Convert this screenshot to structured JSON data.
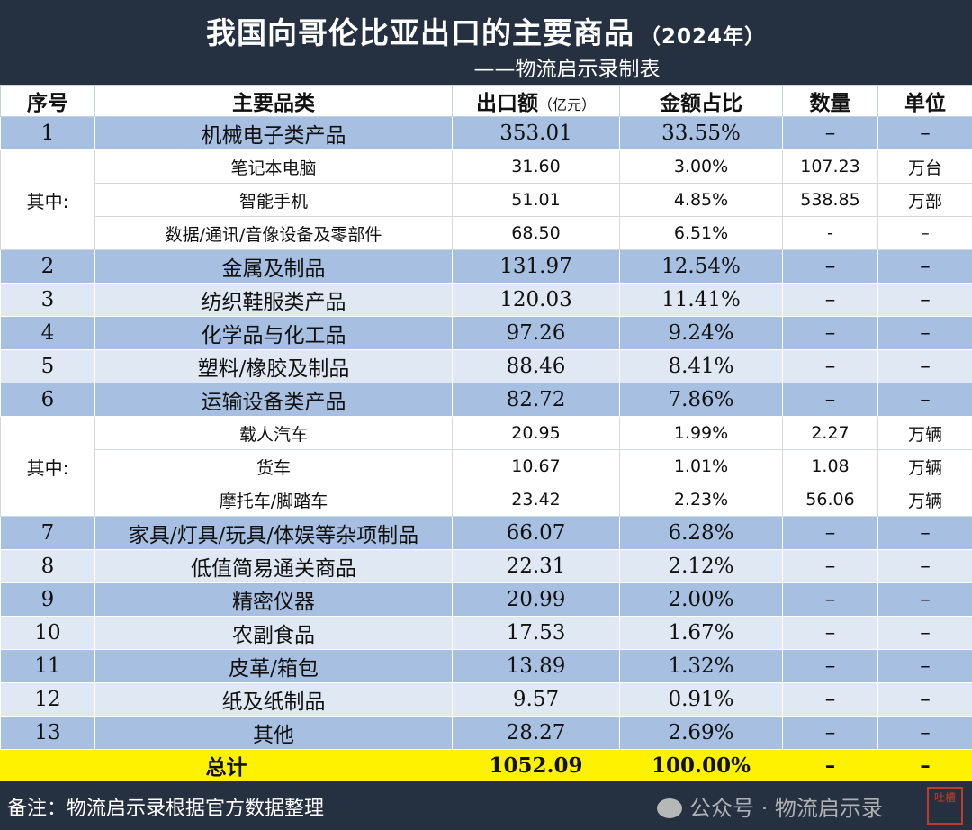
{
  "title": "我国向哥伦比亚出口的主要商品",
  "title_year": "（2024年）",
  "subtitle": "——物流启示录制表",
  "headers": {
    "no": "序号",
    "category": "主要品类",
    "amount": "出口额",
    "amount_unit": "（亿元）",
    "share": "金额占比",
    "qty": "数量",
    "unit": "单位"
  },
  "rows": [
    {
      "no": "1",
      "name": "机械电子类产品",
      "amount": "353.01",
      "share": "33.55%",
      "qty": "–",
      "unit": "–"
    },
    {
      "no": "2",
      "name": "金属及制品",
      "amount": "131.97",
      "share": "12.54%",
      "qty": "–",
      "unit": "–"
    },
    {
      "no": "3",
      "name": "纺织鞋服类产品",
      "amount": "120.03",
      "share": "11.41%",
      "qty": "–",
      "unit": "–"
    },
    {
      "no": "4",
      "name": "化学品与化工品",
      "amount": "97.26",
      "share": "9.24%",
      "qty": "–",
      "unit": "–"
    },
    {
      "no": "5",
      "name": "塑料/橡胶及制品",
      "amount": "88.46",
      "share": "8.41%",
      "qty": "–",
      "unit": "–"
    },
    {
      "no": "6",
      "name": "运输设备类产品",
      "amount": "82.72",
      "share": "7.86%",
      "qty": "–",
      "unit": "–"
    },
    {
      "no": "7",
      "name": "家具/灯具/玩具/体娱等杂项制品",
      "amount": "66.07",
      "share": "6.28%",
      "qty": "–",
      "unit": "–"
    },
    {
      "no": "8",
      "name": "低值简易通关商品",
      "amount": "22.31",
      "share": "2.12%",
      "qty": "–",
      "unit": "–"
    },
    {
      "no": "9",
      "name": "精密仪器",
      "amount": "20.99",
      "share": "2.00%",
      "qty": "–",
      "unit": "–"
    },
    {
      "no": "10",
      "name": "农副食品",
      "amount": "17.53",
      "share": "1.67%",
      "qty": "–",
      "unit": "–"
    },
    {
      "no": "11",
      "name": "皮革/箱包",
      "amount": "13.89",
      "share": "1.32%",
      "qty": "–",
      "unit": "–"
    },
    {
      "no": "12",
      "name": "纸及纸制品",
      "amount": "9.57",
      "share": "0.91%",
      "qty": "–",
      "unit": "–"
    },
    {
      "no": "13",
      "name": "其他",
      "amount": "28.27",
      "share": "2.69%",
      "qty": "–",
      "unit": "–"
    }
  ],
  "sub1": {
    "label": "其中:",
    "items": [
      {
        "name": "笔记本电脑",
        "amount": "31.60",
        "share": "3.00%",
        "qty": "107.23",
        "unit": "万台"
      },
      {
        "name": "智能手机",
        "amount": "51.01",
        "share": "4.85%",
        "qty": "538.85",
        "unit": "万部"
      },
      {
        "name": "数据/通讯/音像设备及零部件",
        "amount": "68.50",
        "share": "6.51%",
        "qty": "-",
        "unit": "–"
      }
    ]
  },
  "sub2": {
    "label": "其中:",
    "items": [
      {
        "name": "载人汽车",
        "amount": "20.95",
        "share": "1.99%",
        "qty": "2.27",
        "unit": "万辆"
      },
      {
        "name": "货车",
        "amount": "10.67",
        "share": "1.01%",
        "qty": "1.08",
        "unit": "万辆"
      },
      {
        "name": "摩托车/脚踏车",
        "amount": "23.42",
        "share": "2.23%",
        "qty": "56.06",
        "unit": "万辆"
      }
    ]
  },
  "total": {
    "label": "总计",
    "amount": "1052.09",
    "share": "100.00%",
    "qty": "–",
    "unit": "–"
  },
  "note": "备注：物流启示录根据官方数据整理",
  "watermark": "公众号 · 物流启示录",
  "stamp_text": "吐槽",
  "colors": {
    "header_bg": "#253140",
    "row_dark": "#a7c0e1",
    "row_light": "#dfe8f3",
    "total": "#fff200"
  }
}
